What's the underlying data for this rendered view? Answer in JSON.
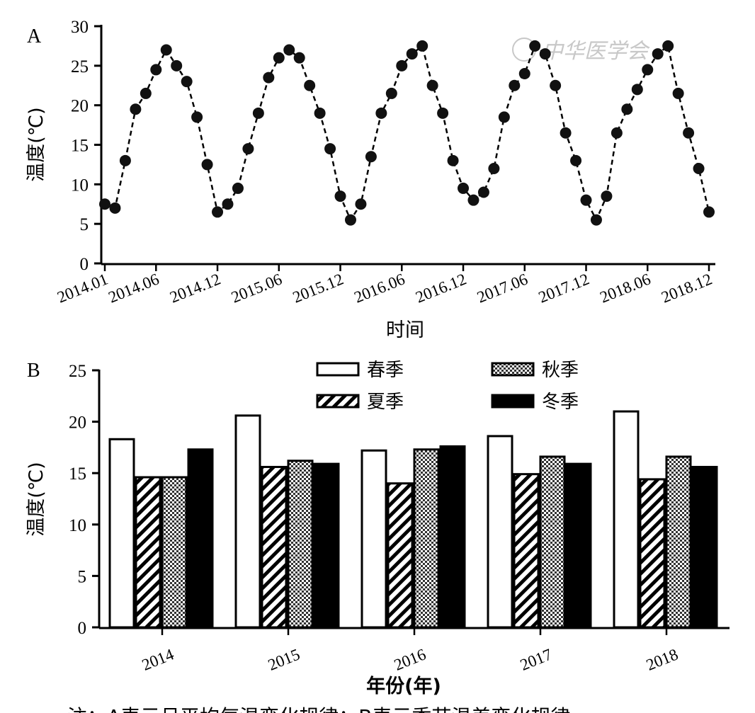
{
  "chart_data": [
    {
      "type": "line",
      "panel_label": "A",
      "xlabel": "时间",
      "ylabel": "温度(℃)",
      "ylim": [
        0,
        30
      ],
      "yticks": [
        0,
        5,
        10,
        15,
        20,
        25,
        30
      ],
      "x_tick_labels": [
        "2014.01",
        "2014.06",
        "2014.12",
        "2015.06",
        "2015.12",
        "2016.06",
        "2016.12",
        "2017.06",
        "2017.12",
        "2018.06",
        "2018.12"
      ],
      "x_tick_months": [
        1,
        6,
        12,
        18,
        24,
        30,
        36,
        42,
        48,
        54,
        60
      ],
      "series": [
        {
          "values": [
            7.5,
            7.0,
            13.0,
            19.5,
            21.5,
            24.5,
            27.0,
            25.0,
            23.0,
            18.5,
            12.5,
            6.5,
            7.5,
            9.5,
            14.5,
            19.0,
            23.5,
            26.0,
            27.0,
            26.0,
            22.5,
            19.0,
            14.5,
            8.5,
            5.5,
            7.5,
            13.5,
            19.0,
            21.5,
            25.0,
            26.5,
            27.5,
            22.5,
            19.0,
            13.0,
            9.5,
            8.0,
            9.0,
            12.0,
            18.5,
            22.5,
            24.0,
            27.5,
            26.5,
            22.5,
            16.5,
            13.0,
            8.0,
            5.5,
            8.5,
            16.5,
            19.5,
            22.0,
            24.5,
            26.5,
            27.5,
            21.5,
            16.5,
            12.0,
            6.5
          ]
        }
      ]
    },
    {
      "type": "bar",
      "panel_label": "B",
      "xlabel": "年份(年)",
      "ylabel": "温度(℃)",
      "ylim": [
        0,
        25
      ],
      "yticks": [
        0,
        5,
        10,
        15,
        20,
        25
      ],
      "categories": [
        "2014",
        "2015",
        "2016",
        "2017",
        "2018"
      ],
      "legend_position": "top",
      "series": [
        {
          "name": "春季",
          "pattern": "white",
          "values": [
            18.3,
            20.6,
            17.2,
            18.6,
            21.0
          ]
        },
        {
          "name": "夏季",
          "pattern": "diagonal-hatch",
          "values": [
            14.6,
            15.6,
            14.0,
            14.9,
            14.4
          ]
        },
        {
          "name": "秋季",
          "pattern": "checkered",
          "values": [
            14.6,
            16.2,
            17.3,
            16.6,
            16.6
          ]
        },
        {
          "name": "冬季",
          "pattern": "black",
          "values": [
            17.3,
            15.9,
            17.6,
            15.9,
            15.6
          ]
        }
      ]
    }
  ],
  "watermark": "中华医学会",
  "caption": "注：A表示月平均气温变化规律；B表示季节温差变化规律"
}
